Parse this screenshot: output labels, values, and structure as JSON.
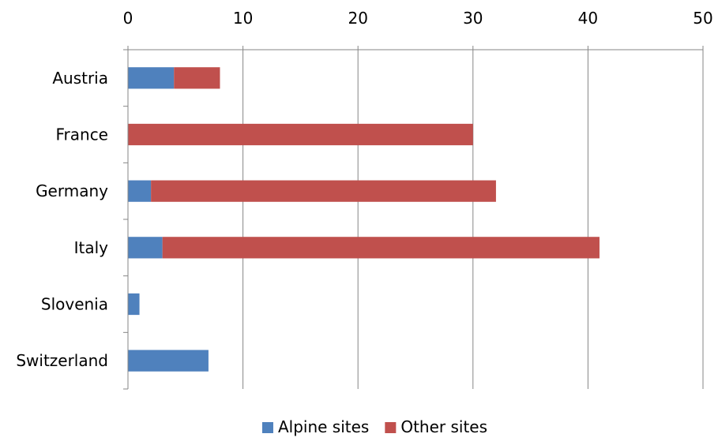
{
  "chart_data": {
    "type": "bar",
    "orientation": "horizontal",
    "stacked": true,
    "categories": [
      "Austria",
      "France",
      "Germany",
      "Italy",
      "Slovenia",
      "Switzerland"
    ],
    "series": [
      {
        "name": "Alpine sites",
        "color": "#4F81BD",
        "values": [
          4,
          0,
          2,
          3,
          1,
          7
        ]
      },
      {
        "name": "Other sites",
        "color": "#C0504D",
        "values": [
          4,
          30,
          30,
          38,
          0,
          0
        ]
      }
    ],
    "xlim": [
      0,
      50
    ],
    "xticks": [
      0,
      10,
      20,
      30,
      40,
      50
    ],
    "x_axis_position": "top",
    "grid": true,
    "legend_position": "bottom"
  }
}
